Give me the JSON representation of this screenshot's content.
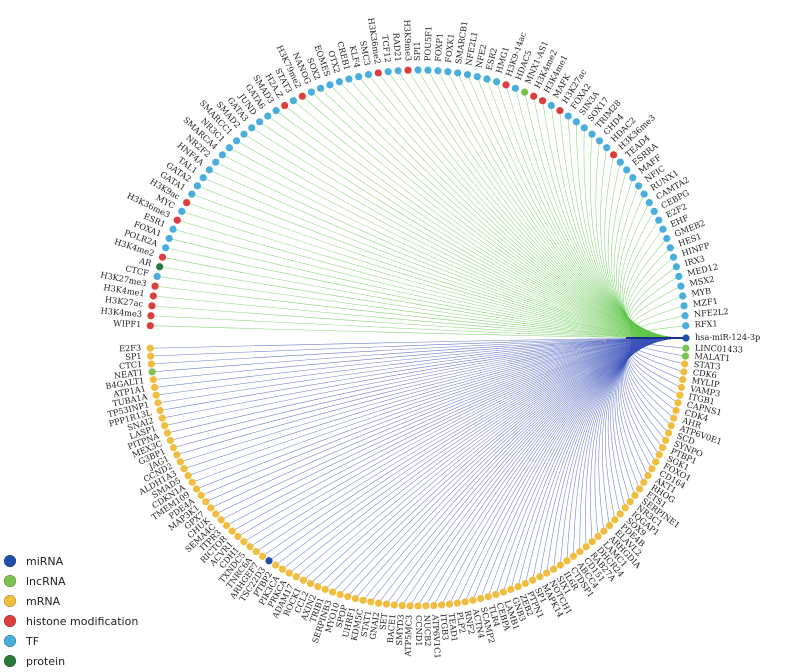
{
  "colors": {
    "miRNA": "#1f4ea8",
    "lncRNA": "#7cc24f",
    "mRNA": "#f0bd3f",
    "histone_modification": "#dc3d3d",
    "TF": "#49aedb",
    "protein": "#257a3c",
    "edge_green": "#5fc64a",
    "edge_blue": "#3a52b8"
  },
  "legend": [
    {
      "key": "miRNA",
      "label": "miRNA",
      "icon": "circle-dot"
    },
    {
      "key": "lncRNA",
      "label": "lncRNA",
      "icon": "circle-dot"
    },
    {
      "key": "mRNA",
      "label": "mRNA",
      "icon": "circle-dot"
    },
    {
      "key": "histone_modification",
      "label": "histone modification",
      "icon": "circle-dot"
    },
    {
      "key": "TF",
      "label": "TF",
      "icon": "circle-dot"
    },
    {
      "key": "protein",
      "label": "protein",
      "icon": "circle-dot"
    }
  ],
  "hub": {
    "label": "hsa-miR-124-3p",
    "type": "miRNA"
  },
  "upper_nodes": [
    {
      "label": "RFX1",
      "type": "TF"
    },
    {
      "label": "NFE2L2",
      "type": "TF"
    },
    {
      "label": "MZF1",
      "type": "TF"
    },
    {
      "label": "MYB",
      "type": "TF"
    },
    {
      "label": "MSX2",
      "type": "TF"
    },
    {
      "label": "MED12",
      "type": "TF"
    },
    {
      "label": "IRX3",
      "type": "TF"
    },
    {
      "label": "HINFP",
      "type": "TF"
    },
    {
      "label": "HES1",
      "type": "TF"
    },
    {
      "label": "GMEB2",
      "type": "TF"
    },
    {
      "label": "EHF",
      "type": "TF"
    },
    {
      "label": "E2F2",
      "type": "TF"
    },
    {
      "label": "CEBPG",
      "type": "TF"
    },
    {
      "label": "CAMTA2",
      "type": "TF"
    },
    {
      "label": "RUNX1",
      "type": "TF"
    },
    {
      "label": "NFIC",
      "type": "TF"
    },
    {
      "label": "MAFF",
      "type": "TF"
    },
    {
      "label": "ESRRA",
      "type": "TF"
    },
    {
      "label": "TEAD4",
      "type": "TF"
    },
    {
      "label": "H3K36me3",
      "type": "histone_modification"
    },
    {
      "label": "HDAC2",
      "type": "TF"
    },
    {
      "label": "CHD4",
      "type": "TF"
    },
    {
      "label": "TRIM28",
      "type": "TF"
    },
    {
      "label": "SOX17",
      "type": "TF"
    },
    {
      "label": "SIN3A",
      "type": "TF"
    },
    {
      "label": "FOXA2",
      "type": "TF"
    },
    {
      "label": "H3K27ac",
      "type": "histone_modification"
    },
    {
      "label": "MAFK",
      "type": "TF"
    },
    {
      "label": "H3K4me1",
      "type": "histone_modification"
    },
    {
      "label": "H3K4me2",
      "type": "histone_modification"
    },
    {
      "label": "MNX1-AS1",
      "type": "lncRNA"
    },
    {
      "label": "HDAC5",
      "type": "TF"
    },
    {
      "label": "H3K9-14ac",
      "type": "histone_modification"
    },
    {
      "label": "HMG1",
      "type": "TF"
    },
    {
      "label": "ESR2",
      "type": "TF"
    },
    {
      "label": "NFE2",
      "type": "TF"
    },
    {
      "label": "NFE2L1",
      "type": "TF"
    },
    {
      "label": "SMARCB1",
      "type": "TF"
    },
    {
      "label": "FOXK1",
      "type": "TF"
    },
    {
      "label": "FOXP1",
      "type": "TF"
    },
    {
      "label": "POU5F1",
      "type": "TF"
    },
    {
      "label": "SPI1",
      "type": "TF"
    },
    {
      "label": "H3K9me3",
      "type": "histone_modification"
    },
    {
      "label": "RAD21",
      "type": "TF"
    },
    {
      "label": "TCF12",
      "type": "TF"
    },
    {
      "label": "H3K36me2",
      "type": "histone_modification"
    },
    {
      "label": "SMC3",
      "type": "TF"
    },
    {
      "label": "KLF4",
      "type": "TF"
    },
    {
      "label": "CREB1",
      "type": "TF"
    },
    {
      "label": "OTX2",
      "type": "TF"
    },
    {
      "label": "EOMES",
      "type": "TF"
    },
    {
      "label": "SOX2",
      "type": "TF"
    },
    {
      "label": "NANOG",
      "type": "TF"
    },
    {
      "label": "H3K79me2",
      "type": "histone_modification"
    },
    {
      "label": "STAT3",
      "type": "TF"
    },
    {
      "label": "H2A.Z",
      "type": "histone_modification"
    },
    {
      "label": "SMAD3",
      "type": "TF"
    },
    {
      "label": "GATA6",
      "type": "TF"
    },
    {
      "label": "JUND",
      "type": "TF"
    },
    {
      "label": "GATA3",
      "type": "TF"
    },
    {
      "label": "SMAD2",
      "type": "TF"
    },
    {
      "label": "SMARCC1",
      "type": "TF"
    },
    {
      "label": "NR3C1",
      "type": "TF"
    },
    {
      "label": "SMARCA4",
      "type": "TF"
    },
    {
      "label": "NR2F2",
      "type": "TF"
    },
    {
      "label": "HNF4A",
      "type": "TF"
    },
    {
      "label": "TAL1",
      "type": "TF"
    },
    {
      "label": "GATA2",
      "type": "TF"
    },
    {
      "label": "GATA1",
      "type": "TF"
    },
    {
      "label": "H3K9ac",
      "type": "histone_modification"
    },
    {
      "label": "MYC",
      "type": "TF"
    },
    {
      "label": "H3K36me3",
      "type": "histone_modification"
    },
    {
      "label": "ESR1",
      "type": "TF"
    },
    {
      "label": "FOXA1",
      "type": "TF"
    },
    {
      "label": "POLR2A",
      "type": "TF"
    },
    {
      "label": "H3K4me2",
      "type": "histone_modification"
    },
    {
      "label": "AR",
      "type": "protein"
    },
    {
      "label": "CTCF",
      "type": "TF"
    },
    {
      "label": "H3K27me3",
      "type": "histone_modification"
    },
    {
      "label": "H3K4me1",
      "type": "histone_modification"
    },
    {
      "label": "H3K27ac",
      "type": "histone_modification"
    },
    {
      "label": "H3K4me3",
      "type": "histone_modification"
    },
    {
      "label": "WIPF1",
      "type": "histone_modification"
    }
  ],
  "lower_nodes": [
    {
      "label": "LINC01433",
      "type": "lncRNA"
    },
    {
      "label": "MALAT1",
      "type": "lncRNA"
    },
    {
      "label": "STAT3",
      "type": "mRNA"
    },
    {
      "label": "CDK6",
      "type": "mRNA"
    },
    {
      "label": "MYLIP",
      "type": "mRNA"
    },
    {
      "label": "VAMP3",
      "type": "mRNA"
    },
    {
      "label": "ITGB1",
      "type": "mRNA"
    },
    {
      "label": "CAPNS1",
      "type": "mRNA"
    },
    {
      "label": "CDK4",
      "type": "mRNA"
    },
    {
      "label": "AHR",
      "type": "mRNA"
    },
    {
      "label": "ATP6V0E1",
      "type": "mRNA"
    },
    {
      "label": "SCD",
      "type": "mRNA"
    },
    {
      "label": "SYNPO",
      "type": "mRNA"
    },
    {
      "label": "PTBP1",
      "type": "mRNA"
    },
    {
      "label": "SGK1",
      "type": "mRNA"
    },
    {
      "label": "FOXO1",
      "type": "mRNA"
    },
    {
      "label": "CD164",
      "type": "mRNA"
    },
    {
      "label": "AKT1",
      "type": "mRNA"
    },
    {
      "label": "RHOG",
      "type": "mRNA"
    },
    {
      "label": "ETS1",
      "type": "mRNA"
    },
    {
      "label": "SERPINE1",
      "type": "mRNA"
    },
    {
      "label": "NR3C1",
      "type": "mRNA"
    },
    {
      "label": "IQGAP1",
      "type": "mRNA"
    },
    {
      "label": "SOX9",
      "type": "mRNA"
    },
    {
      "label": "PDE4B",
      "type": "mRNA"
    },
    {
      "label": "ELAVL2",
      "type": "mRNA"
    },
    {
      "label": "ARHGDIA",
      "type": "mRNA"
    },
    {
      "label": "LAMC1",
      "type": "mRNA"
    },
    {
      "label": "DHCR24",
      "type": "mRNA"
    },
    {
      "label": "RAB27A",
      "type": "mRNA"
    },
    {
      "label": "CD151",
      "type": "mRNA"
    },
    {
      "label": "ABCC4",
      "type": "mRNA"
    },
    {
      "label": "CTDSP1",
      "type": "mRNA"
    },
    {
      "label": "IL6R",
      "type": "mRNA"
    },
    {
      "label": "SIX1",
      "type": "mRNA"
    },
    {
      "label": "NOTCH1",
      "type": "mRNA"
    },
    {
      "label": "MAPK14",
      "type": "mRNA"
    },
    {
      "label": "SP1",
      "type": "mRNA"
    },
    {
      "label": "PTPN1",
      "type": "mRNA"
    },
    {
      "label": "ZEB2",
      "type": "mRNA"
    },
    {
      "label": "GNB3",
      "type": "mRNA"
    },
    {
      "label": "LAMB1",
      "type": "mRNA"
    },
    {
      "label": "CEBPA",
      "type": "mRNA"
    },
    {
      "label": "TLR4",
      "type": "mRNA"
    },
    {
      "label": "SCAMP2",
      "type": "mRNA"
    },
    {
      "label": "ACTN4",
      "type": "mRNA"
    },
    {
      "label": "RNF2",
      "type": "mRNA"
    },
    {
      "label": "PLP2",
      "type": "mRNA"
    },
    {
      "label": "TEAD1",
      "type": "mRNA"
    },
    {
      "label": "ITGB3",
      "type": "mRNA"
    },
    {
      "label": "ATP6V1C1",
      "type": "mRNA"
    },
    {
      "label": "NUCB2",
      "type": "mRNA"
    },
    {
      "label": "CCND1",
      "type": "mRNA"
    },
    {
      "label": "ATP5MC3",
      "type": "mRNA"
    },
    {
      "label": "SMYD3",
      "type": "mRNA"
    },
    {
      "label": "BACE1",
      "type": "mRNA"
    },
    {
      "label": "SET",
      "type": "mRNA"
    },
    {
      "label": "GNAI2",
      "type": "mRNA"
    },
    {
      "label": "STAT1",
      "type": "mRNA"
    },
    {
      "label": "KDM5C",
      "type": "mRNA"
    },
    {
      "label": "UHRF1",
      "type": "mRNA"
    },
    {
      "label": "SPOP",
      "type": "mRNA"
    },
    {
      "label": "MYO10",
      "type": "mRNA"
    },
    {
      "label": "SERPINB3",
      "type": "mRNA"
    },
    {
      "label": "TRIB1",
      "type": "mRNA"
    },
    {
      "label": "AXIN2",
      "type": "mRNA"
    },
    {
      "label": "CCL2",
      "type": "mRNA"
    },
    {
      "label": "ROCK1",
      "type": "mRNA"
    },
    {
      "label": "ADAM17",
      "type": "mRNA"
    },
    {
      "label": "PRKCA",
      "type": "mRNA"
    },
    {
      "label": "PIK3CA",
      "type": "mRNA"
    },
    {
      "label": "PTBP2",
      "type": "mRNA"
    },
    {
      "label": "TSC22D3",
      "type": "miRNA"
    },
    {
      "label": "ARHGEF7",
      "type": "mRNA"
    },
    {
      "label": "TNRC6A",
      "type": "mRNA"
    },
    {
      "label": "TXNDC5",
      "type": "mRNA"
    },
    {
      "label": "CDH1",
      "type": "mRNA"
    },
    {
      "label": "ACVR1",
      "type": "mRNA"
    },
    {
      "label": "RICTOR",
      "type": "mRNA"
    },
    {
      "label": "ITPR3",
      "type": "mRNA"
    },
    {
      "label": "SEMA4C",
      "type": "mRNA"
    },
    {
      "label": "CHUK",
      "type": "mRNA"
    },
    {
      "label": "GPX7",
      "type": "mRNA"
    },
    {
      "label": "MAP3K1",
      "type": "mRNA"
    },
    {
      "label": "PDE4A",
      "type": "mRNA"
    },
    {
      "label": "TMEM109",
      "type": "mRNA"
    },
    {
      "label": "CDKN1A",
      "type": "mRNA"
    },
    {
      "label": "SMAD5",
      "type": "mRNA"
    },
    {
      "label": "ALDH1A3",
      "type": "mRNA"
    },
    {
      "label": "CCND2",
      "type": "mRNA"
    },
    {
      "label": "JAG1",
      "type": "mRNA"
    },
    {
      "label": "G3BP1",
      "type": "mRNA"
    },
    {
      "label": "MEX3C",
      "type": "mRNA"
    },
    {
      "label": "PITPNA",
      "type": "mRNA"
    },
    {
      "label": "LASP1",
      "type": "mRNA"
    },
    {
      "label": "SNAI2",
      "type": "mRNA"
    },
    {
      "label": "PPP1R13L",
      "type": "mRNA"
    },
    {
      "label": "TP53INP1",
      "type": "mRNA"
    },
    {
      "label": "TUBA1A",
      "type": "mRNA"
    },
    {
      "label": "ATP1A1",
      "type": "mRNA"
    },
    {
      "label": "B4GALT1",
      "type": "mRNA"
    },
    {
      "label": "NEAT1",
      "type": "lncRNA"
    },
    {
      "label": "CTC1",
      "type": "mRNA"
    },
    {
      "label": "SP1",
      "type": "mRNA"
    },
    {
      "label": "E2F3",
      "type": "mRNA"
    }
  ]
}
